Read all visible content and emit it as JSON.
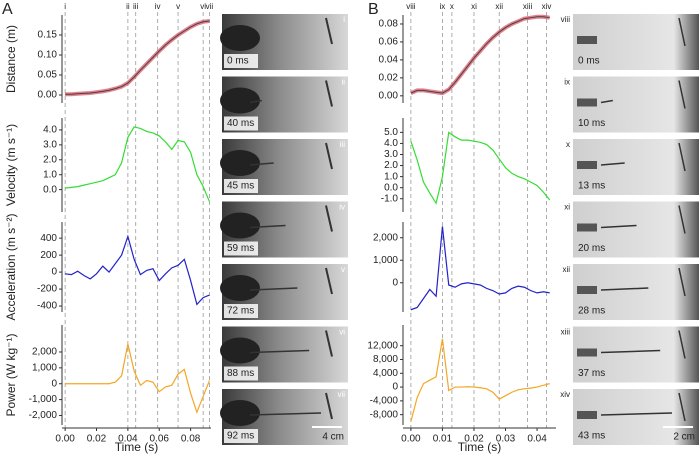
{
  "chart_data": [
    {
      "type": "line",
      "ylabel": "Distance (m)",
      "color": "#444444",
      "halo_color": "#e06070",
      "x": [
        0,
        0.004,
        0.008,
        0.012,
        0.016,
        0.02,
        0.024,
        0.028,
        0.032,
        0.036,
        0.04,
        0.044,
        0.048,
        0.052,
        0.056,
        0.06,
        0.064,
        0.068,
        0.072,
        0.076,
        0.08,
        0.084,
        0.088,
        0.092
      ],
      "values": [
        0.002,
        0.002,
        0.003,
        0.004,
        0.005,
        0.007,
        0.009,
        0.012,
        0.016,
        0.021,
        0.03,
        0.045,
        0.062,
        0.078,
        0.094,
        0.11,
        0.125,
        0.138,
        0.15,
        0.16,
        0.17,
        0.178,
        0.183,
        0.185
      ],
      "xlim": [
        -0.002,
        0.093
      ],
      "ylim": [
        -0.02,
        0.2
      ],
      "yticks": [
        {
          "value": 0,
          "label": "0.00"
        },
        0.05,
        {
          "value": 0.1,
          "label": "0.10"
        },
        0.15
      ],
      "event_lines": [
        0,
        0.04,
        0.045,
        0.059,
        0.072,
        0.088,
        0.092
      ],
      "event_labels": [
        "i",
        "ii",
        "iii",
        "iv",
        "v",
        "vi",
        "vii"
      ]
    },
    {
      "type": "line",
      "ylabel": "Velocity (m s⁻¹)",
      "color": "#33dd33",
      "x": [
        0,
        0.004,
        0.008,
        0.012,
        0.016,
        0.02,
        0.024,
        0.028,
        0.032,
        0.036,
        0.04,
        0.044,
        0.048,
        0.052,
        0.056,
        0.06,
        0.064,
        0.068,
        0.072,
        0.076,
        0.08,
        0.084,
        0.088,
        0.092
      ],
      "values": [
        0.1,
        0.15,
        0.2,
        0.3,
        0.4,
        0.5,
        0.6,
        0.8,
        1.0,
        1.8,
        3.5,
        4.2,
        4.1,
        3.9,
        3.8,
        3.6,
        3.2,
        2.7,
        3.3,
        3.2,
        2.5,
        1.0,
        0.2,
        -0.8
      ],
      "xlim": [
        -0.002,
        0.093
      ],
      "ylim": [
        -1.5,
        4.8
      ],
      "yticks": [
        {
          "value": 0,
          "label": "0.0"
        },
        {
          "value": 1,
          "label": "1.0"
        },
        {
          "value": 2,
          "label": "2.0"
        },
        {
          "value": 3,
          "label": "3.0"
        },
        {
          "value": 4,
          "label": "4.0"
        }
      ]
    },
    {
      "type": "line",
      "ylabel": "Acceleration (m s⁻²)",
      "color": "#2222cc",
      "x": [
        0,
        0.004,
        0.008,
        0.012,
        0.016,
        0.02,
        0.024,
        0.028,
        0.032,
        0.036,
        0.04,
        0.044,
        0.048,
        0.052,
        0.056,
        0.06,
        0.064,
        0.068,
        0.072,
        0.076,
        0.08,
        0.084,
        0.088,
        0.092
      ],
      "values": [
        -20,
        -30,
        10,
        -40,
        -80,
        -20,
        70,
        0,
        100,
        200,
        420,
        150,
        -30,
        20,
        40,
        -100,
        -20,
        50,
        80,
        150,
        -100,
        -380,
        -300,
        -270
      ],
      "xlim": [
        -0.002,
        0.093
      ],
      "ylim": [
        -470,
        590
      ],
      "yticks": [
        -400,
        -200,
        0,
        200,
        400
      ]
    },
    {
      "type": "line",
      "ylabel": "Power (W kg⁻¹)",
      "color": "#f5a623",
      "x": [
        0,
        0.004,
        0.008,
        0.012,
        0.016,
        0.02,
        0.024,
        0.028,
        0.032,
        0.036,
        0.04,
        0.044,
        0.048,
        0.052,
        0.056,
        0.06,
        0.064,
        0.068,
        0.072,
        0.076,
        0.08,
        0.084,
        0.088,
        0.092
      ],
      "values": [
        0,
        0,
        0,
        0,
        0,
        0,
        0,
        0,
        100,
        500,
        2500,
        800,
        -100,
        200,
        100,
        -500,
        -200,
        -100,
        600,
        900,
        -600,
        -1800,
        -800,
        200
      ],
      "xlim": [
        -0.002,
        0.093
      ],
      "ylim": [
        -2600,
        3700
      ],
      "yticks": [
        {
          "value": -2000,
          "label": "-2,000"
        },
        {
          "value": -1000,
          "label": "-1,000"
        },
        0,
        {
          "value": 1000,
          "label": "1,000"
        },
        {
          "value": 2000,
          "label": "2,000"
        }
      ],
      "xlabel": "Time (s)",
      "xticks": [
        {
          "value": 0,
          "label": "0.00"
        },
        0.02,
        0.04,
        0.06,
        0.08
      ]
    },
    {
      "type": "line",
      "color": "#444444",
      "halo_color": "#e06070",
      "x": [
        0,
        0.002,
        0.004,
        0.006,
        0.008,
        0.01,
        0.012,
        0.014,
        0.016,
        0.018,
        0.02,
        0.022,
        0.024,
        0.026,
        0.028,
        0.03,
        0.032,
        0.034,
        0.036,
        0.038,
        0.04,
        0.042,
        0.044
      ],
      "values": [
        0.003,
        0.006,
        0.006,
        0.005,
        0.004,
        0.003,
        0.007,
        0.015,
        0.024,
        0.033,
        0.042,
        0.05,
        0.058,
        0.065,
        0.071,
        0.076,
        0.08,
        0.083,
        0.086,
        0.087,
        0.088,
        0.088,
        0.087
      ],
      "xlim": [
        -0.0025,
        0.046
      ],
      "ylim": [
        -0.008,
        0.09
      ],
      "yticks": [
        {
          "value": 0,
          "label": "0.00"
        },
        0.02,
        0.04,
        0.06,
        0.08
      ],
      "event_lines": [
        0,
        0.01,
        0.013,
        0.02,
        0.028,
        0.037,
        0.043
      ],
      "event_labels": [
        "viii",
        "ix",
        "x",
        "xi",
        "xii",
        "xiii",
        "xiv"
      ]
    },
    {
      "type": "line",
      "color": "#33dd33",
      "x": [
        0,
        0.002,
        0.004,
        0.006,
        0.008,
        0.01,
        0.012,
        0.014,
        0.016,
        0.018,
        0.02,
        0.022,
        0.024,
        0.026,
        0.028,
        0.03,
        0.032,
        0.034,
        0.036,
        0.038,
        0.04,
        0.042,
        0.044
      ],
      "values": [
        4.2,
        2.5,
        0.5,
        -0.5,
        -1.4,
        1.0,
        5.0,
        4.6,
        4.3,
        4.3,
        4.2,
        4.1,
        3.9,
        3.4,
        2.6,
        1.8,
        1.3,
        1.0,
        0.8,
        0.5,
        0.2,
        -0.4,
        -1.1
      ],
      "xlim": [
        -0.0025,
        0.046
      ],
      "ylim": [
        -2.2,
        6.3
      ],
      "yticks": [
        {
          "value": -1,
          "label": "-1.0"
        },
        {
          "value": 0,
          "label": "0.0"
        },
        {
          "value": 1,
          "label": "1.0"
        },
        {
          "value": 2,
          "label": "2.0"
        },
        {
          "value": 3,
          "label": "3.0"
        },
        {
          "value": 4,
          "label": "4.0"
        },
        {
          "value": 5,
          "label": "5.0"
        }
      ]
    },
    {
      "type": "line",
      "color": "#2222cc",
      "x": [
        0,
        0.002,
        0.004,
        0.006,
        0.008,
        0.01,
        0.012,
        0.014,
        0.016,
        0.018,
        0.02,
        0.022,
        0.024,
        0.026,
        0.028,
        0.03,
        0.032,
        0.034,
        0.036,
        0.038,
        0.04,
        0.042,
        0.044
      ],
      "values": [
        -1200,
        -1100,
        -700,
        -300,
        -600,
        2500,
        -100,
        -200,
        -50,
        0,
        -50,
        -100,
        -250,
        -350,
        -500,
        -450,
        -250,
        -150,
        -200,
        -350,
        -450,
        -400,
        -450
      ],
      "xlim": [
        -0.0025,
        0.046
      ],
      "ylim": [
        -1300,
        2700
      ],
      "yticks": [
        0,
        {
          "value": 1000,
          "label": "1,000"
        },
        {
          "value": 2000,
          "label": "2,000"
        }
      ]
    },
    {
      "type": "line",
      "color": "#f5a623",
      "x": [
        0,
        0.002,
        0.004,
        0.006,
        0.008,
        0.01,
        0.012,
        0.014,
        0.016,
        0.018,
        0.02,
        0.022,
        0.024,
        0.026,
        0.028,
        0.03,
        0.032,
        0.034,
        0.036,
        0.038,
        0.04,
        0.042,
        0.044
      ],
      "values": [
        -10000,
        -3000,
        1000,
        2000,
        3000,
        14000,
        -1000,
        0,
        0,
        100,
        0,
        -200,
        -500,
        -1500,
        -3500,
        -2500,
        -1500,
        -800,
        -500,
        -300,
        0,
        500,
        1000
      ],
      "xlim": [
        -0.0025,
        0.046
      ],
      "ylim": [
        -11000,
        18000
      ],
      "yticks": [
        {
          "value": -8000,
          "label": "-8,000"
        },
        {
          "value": -4000,
          "label": "-4,000"
        },
        0,
        {
          "value": 4000,
          "label": "4,000"
        },
        {
          "value": 8000,
          "label": "8,000"
        },
        {
          "value": 12000,
          "label": "12,000"
        }
      ],
      "xlabel": "Time (s)",
      "xticks": [
        {
          "value": 0,
          "label": "0.00"
        },
        0.01,
        0.02,
        0.03,
        0.04
      ]
    }
  ],
  "figure": {
    "panels": [
      {
        "letter": "A",
        "scale_bar": "4 cm",
        "frames": [
          {
            "label": "i",
            "time": "0 ms"
          },
          {
            "label": "ii",
            "time": "40 ms"
          },
          {
            "label": "iii",
            "time": "45 ms"
          },
          {
            "label": "iv",
            "time": "59 ms"
          },
          {
            "label": "v",
            "time": "72 ms"
          },
          {
            "label": "vi",
            "time": "88 ms"
          },
          {
            "label": "vii",
            "time": "92 ms"
          }
        ]
      },
      {
        "letter": "B",
        "scale_bar": "2 cm",
        "frames": [
          {
            "label": "viii",
            "time": "0 ms"
          },
          {
            "label": "ix",
            "time": "10 ms"
          },
          {
            "label": "x",
            "time": "13 ms"
          },
          {
            "label": "xi",
            "time": "20 ms"
          },
          {
            "label": "xii",
            "time": "28 ms"
          },
          {
            "label": "xiii",
            "time": "37 ms"
          },
          {
            "label": "xiv",
            "time": "43 ms"
          }
        ]
      }
    ]
  }
}
